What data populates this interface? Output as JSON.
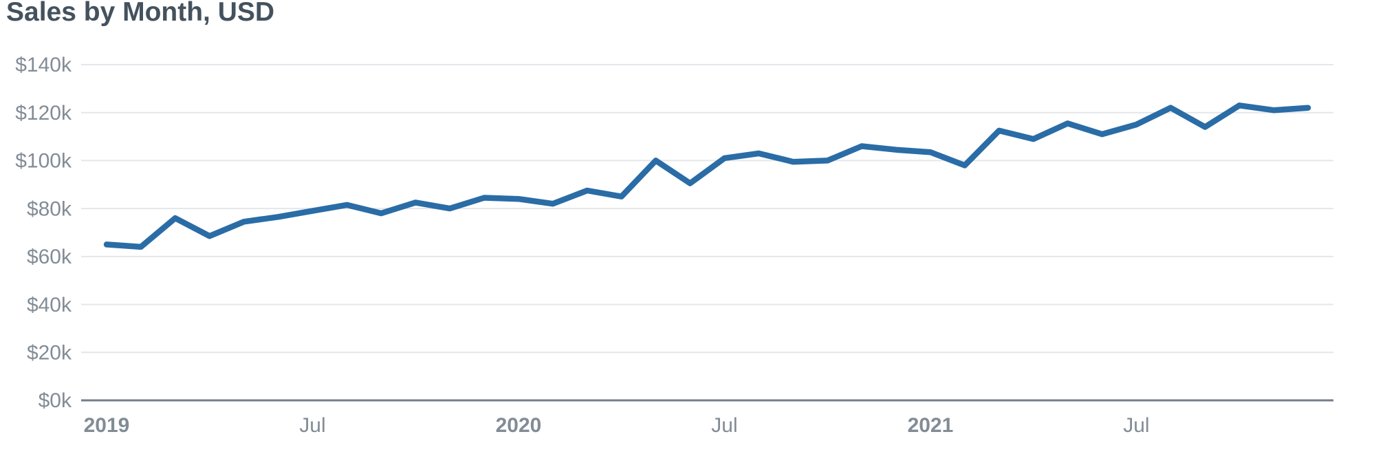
{
  "title": "Sales by Month, USD",
  "colors": {
    "title_text": "#44525e",
    "tick_label": "#828c96",
    "gridline": "#e4e6ea",
    "axis_baseline": "#727e8a",
    "line": "#2a6ca6",
    "background": "#ffffff"
  },
  "chart_data": {
    "type": "line",
    "title": "Sales by Month, USD",
    "series_name": "Sales",
    "unit": "USD thousands",
    "grid": true,
    "legend_position": "none",
    "ylim": [
      0,
      140
    ],
    "x": [
      "Jan 2019",
      "Feb 2019",
      "Mar 2019",
      "Apr 2019",
      "May 2019",
      "Jun 2019",
      "Jul 2019",
      "Aug 2019",
      "Sep 2019",
      "Oct 2019",
      "Nov 2019",
      "Dec 2019",
      "Jan 2020",
      "Feb 2020",
      "Mar 2020",
      "Apr 2020",
      "May 2020",
      "Jun 2020",
      "Jul 2020",
      "Aug 2020",
      "Sep 2020",
      "Oct 2020",
      "Nov 2020",
      "Dec 2020",
      "Jan 2021",
      "Feb 2021",
      "Mar 2021",
      "Apr 2021",
      "May 2021",
      "Jun 2021",
      "Jul 2021",
      "Aug 2021",
      "Sep 2021",
      "Oct 2021",
      "Nov 2021",
      "Dec 2021"
    ],
    "values": [
      65,
      64,
      76,
      68.5,
      74.5,
      76.5,
      79,
      81.5,
      78,
      82.5,
      80,
      84.5,
      84,
      82,
      87.5,
      85,
      100,
      90.5,
      101,
      103,
      99.5,
      100,
      106,
      104.5,
      103.5,
      98,
      112.5,
      109,
      115.5,
      111,
      115,
      122,
      114,
      123,
      121,
      122
    ],
    "y_ticks": [
      {
        "value": 0,
        "label": "$0k"
      },
      {
        "value": 20,
        "label": "$20k"
      },
      {
        "value": 40,
        "label": "$40k"
      },
      {
        "value": 60,
        "label": "$60k"
      },
      {
        "value": 80,
        "label": "$80k"
      },
      {
        "value": 100,
        "label": "$100k"
      },
      {
        "value": 120,
        "label": "$120k"
      },
      {
        "value": 140,
        "label": "$140k"
      }
    ],
    "x_ticks": [
      {
        "label": "2019",
        "month_index": 0,
        "bold": true
      },
      {
        "label": "Jul",
        "month_index": 6,
        "bold": false
      },
      {
        "label": "2020",
        "month_index": 12,
        "bold": true
      },
      {
        "label": "Jul",
        "month_index": 18,
        "bold": false
      },
      {
        "label": "2021",
        "month_index": 24,
        "bold": true
      },
      {
        "label": "Jul",
        "month_index": 30,
        "bold": false
      }
    ]
  }
}
